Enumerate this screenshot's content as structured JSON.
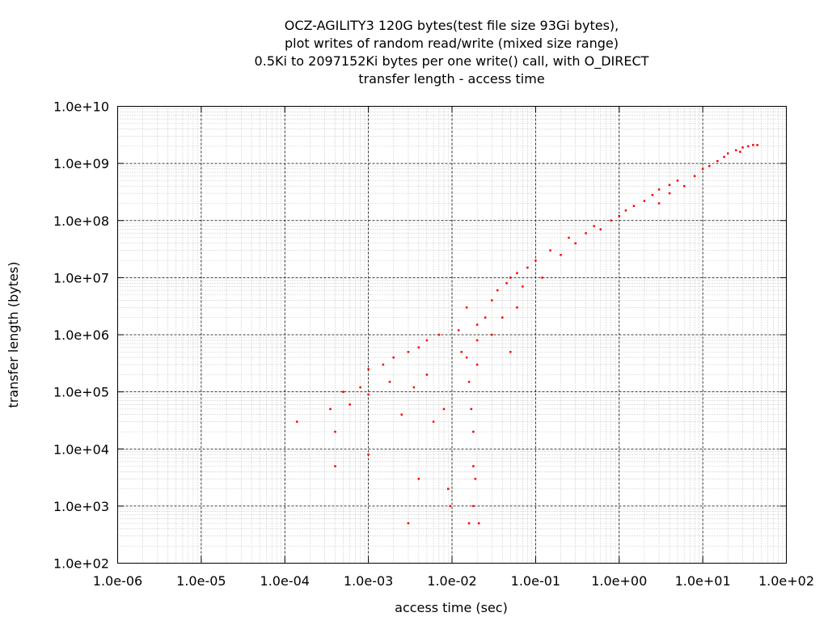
{
  "chart_data": {
    "type": "scatter",
    "title": [
      "OCZ-AGILITY3 120G bytes(test file size 93Gi bytes),",
      "plot writes of random read/write (mixed size range)",
      "0.5Ki to 2097152Ki bytes per one write() call, with O_DIRECT",
      "transfer length - access time"
    ],
    "xlabel": "access time (sec)",
    "ylabel": "transfer length (bytes)",
    "x_scale": "log",
    "y_scale": "log",
    "xlim": [
      1e-06,
      100
    ],
    "ylim": [
      100,
      10000000000
    ],
    "x_ticks": [
      "1.0e-06",
      "1.0e-05",
      "1.0e-04",
      "1.0e-03",
      "1.0e-02",
      "1.0e-01",
      "1.0e+00",
      "1.0e+01",
      "1.0e+02"
    ],
    "y_ticks": [
      "1.0e+02",
      "1.0e+03",
      "1.0e+04",
      "1.0e+05",
      "1.0e+06",
      "1.0e+07",
      "1.0e+08",
      "1.0e+09",
      "1.0e+10"
    ],
    "grid": true,
    "marker_color": "#ff0000",
    "series": [
      {
        "points": [
          [
            0.00014,
            30000
          ],
          [
            0.00035,
            50000
          ],
          [
            0.0004,
            5000
          ],
          [
            0.0004,
            20000
          ],
          [
            0.0005,
            100000
          ],
          [
            0.0006,
            60000
          ],
          [
            0.0008,
            120000
          ],
          [
            0.001,
            250000
          ],
          [
            0.001,
            90000
          ],
          [
            0.001,
            8000
          ],
          [
            0.0015,
            300000
          ],
          [
            0.002,
            400000
          ],
          [
            0.0018,
            150000
          ],
          [
            0.0025,
            40000
          ],
          [
            0.003,
            500000
          ],
          [
            0.003,
            500
          ],
          [
            0.0035,
            120000
          ],
          [
            0.004,
            600000
          ],
          [
            0.004,
            3000
          ],
          [
            0.005,
            800000
          ],
          [
            0.005,
            200000
          ],
          [
            0.006,
            30000
          ],
          [
            0.007,
            1000000
          ],
          [
            0.008,
            50000
          ],
          [
            0.009,
            2000
          ],
          [
            0.0095,
            1000
          ],
          [
            0.012,
            1200000
          ],
          [
            0.015,
            3000000
          ],
          [
            0.013,
            500000
          ],
          [
            0.015,
            400000
          ],
          [
            0.016,
            150000
          ],
          [
            0.017,
            50000
          ],
          [
            0.018,
            20000
          ],
          [
            0.018,
            5000
          ],
          [
            0.018,
            1000
          ],
          [
            0.02,
            1500000
          ],
          [
            0.02,
            800000
          ],
          [
            0.02,
            300000
          ],
          [
            0.019,
            3000
          ],
          [
            0.016,
            500
          ],
          [
            0.021,
            500
          ],
          [
            0.025,
            2000000
          ],
          [
            0.03,
            4000000
          ],
          [
            0.03,
            1000000
          ],
          [
            0.035,
            6000000
          ],
          [
            0.04,
            2000000
          ],
          [
            0.045,
            8000000
          ],
          [
            0.05,
            10000000
          ],
          [
            0.05,
            500000
          ],
          [
            0.06,
            12000000
          ],
          [
            0.06,
            3000000
          ],
          [
            0.07,
            7000000
          ],
          [
            0.08,
            15000000
          ],
          [
            0.1,
            20000000
          ],
          [
            0.12,
            10000000
          ],
          [
            0.15,
            30000000
          ],
          [
            0.2,
            25000000
          ],
          [
            0.25,
            50000000
          ],
          [
            0.3,
            40000000
          ],
          [
            0.4,
            60000000
          ],
          [
            0.5,
            80000000
          ],
          [
            0.6,
            70000000
          ],
          [
            0.8,
            100000000
          ],
          [
            1,
            120000000
          ],
          [
            1.2,
            150000000
          ],
          [
            1.5,
            180000000
          ],
          [
            2,
            220000000
          ],
          [
            2.5,
            280000000
          ],
          [
            3,
            350000000
          ],
          [
            4,
            420000000
          ],
          [
            5,
            500000000
          ],
          [
            3,
            200000000
          ],
          [
            4,
            300000000
          ],
          [
            6,
            400000000
          ],
          [
            8,
            600000000
          ],
          [
            10,
            800000000
          ],
          [
            12,
            900000000
          ],
          [
            15,
            1100000000
          ],
          [
            20,
            1500000000
          ],
          [
            25,
            1700000000
          ],
          [
            30,
            1900000000
          ],
          [
            35,
            2000000000
          ],
          [
            40,
            2100000000
          ],
          [
            45,
            2097152000
          ],
          [
            18,
            1300000000
          ],
          [
            28,
            1600000000
          ]
        ]
      }
    ]
  }
}
